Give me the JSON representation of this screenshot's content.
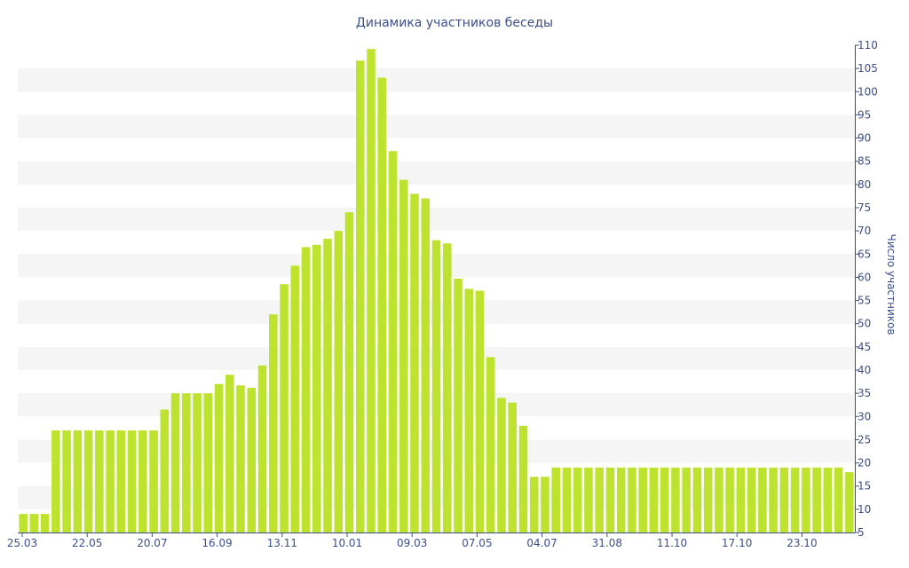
{
  "chart_data": {
    "type": "bar",
    "title": "Динамика участников беседы",
    "xlabel": "",
    "ylabel": "Число участников",
    "ylim": [
      5,
      110
    ],
    "yticks": [
      5,
      10,
      15,
      20,
      25,
      30,
      35,
      40,
      45,
      50,
      55,
      60,
      65,
      70,
      75,
      80,
      85,
      90,
      95,
      100,
      105,
      110
    ],
    "y_axis_side": "right",
    "grid": "alternating horizontal bands",
    "legend": "none",
    "bar_color": "#bde32f",
    "title_color": "#3b4f8c",
    "axis_color": "#3b4f8c",
    "band_color": "#f5f5f5",
    "x_tick_labels": [
      "25.03",
      "22.05",
      "20.07",
      "16.09",
      "13.11",
      "10.01",
      "09.03",
      "07.05",
      "04.07",
      "31.08",
      "11.10",
      "17.10",
      "23.10"
    ],
    "values": [
      9,
      9,
      9,
      27,
      27,
      27,
      27,
      27,
      27,
      27,
      27,
      27,
      27,
      31.5,
      35,
      35,
      35,
      35,
      37,
      39,
      36.7,
      36.2,
      41,
      52,
      58.5,
      62.5,
      66.5,
      67,
      68.3,
      70,
      74,
      106.7,
      109.2,
      103,
      87.2,
      81,
      78,
      77,
      68,
      67.3,
      59.7,
      57.5,
      57.1,
      42.8,
      34,
      33,
      28,
      17,
      17,
      19,
      19,
      19,
      19,
      19,
      19,
      19,
      19,
      19,
      19,
      19,
      19,
      19,
      19,
      19,
      19,
      19,
      19,
      19,
      19,
      19,
      19,
      19,
      19,
      19,
      19,
      19,
      18
    ]
  }
}
